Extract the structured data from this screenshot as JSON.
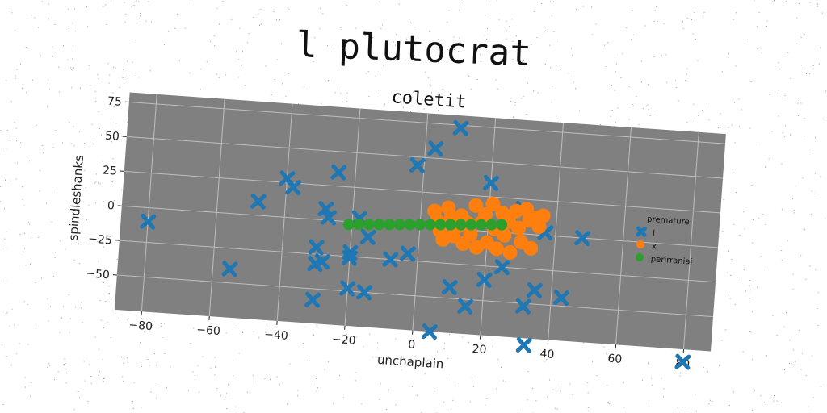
{
  "suptitle": "l plutocrat",
  "chart_data": {
    "type": "scatter",
    "title": "coletit",
    "xlabel": "unchaplain",
    "ylabel": "spindleshanks",
    "xlim": [
      -88,
      88
    ],
    "ylim": [
      -75,
      82
    ],
    "xticks": [
      -80,
      -60,
      -40,
      -20,
      0,
      20,
      40,
      60,
      80
    ],
    "yticks": [
      75,
      50,
      25,
      0,
      -25,
      -50
    ],
    "grid": true,
    "background": "#808080",
    "legend": {
      "title": "premature",
      "placement": "center-right"
    },
    "series": [
      {
        "name": "l",
        "marker": "X",
        "color": "#1f77b4",
        "points": [
          [
            -80,
            -10
          ],
          [
            -55,
            -40
          ],
          [
            -48,
            10
          ],
          [
            -40,
            28
          ],
          [
            -38,
            22
          ],
          [
            -30,
            -20
          ],
          [
            -30,
            -32
          ],
          [
            -28,
            -30
          ],
          [
            -28,
            8
          ],
          [
            -27,
            2
          ],
          [
            -30,
            -58
          ],
          [
            -25,
            35
          ],
          [
            -20,
            -22
          ],
          [
            -20,
            -26
          ],
          [
            -20,
            -48
          ],
          [
            -15,
            -50
          ],
          [
            -18,
            3
          ],
          [
            -15,
            -10
          ],
          [
            -8,
            -25
          ],
          [
            -3,
            -20
          ],
          [
            -2,
            44
          ],
          [
            3,
            57
          ],
          [
            5,
            -75
          ],
          [
            10,
            73
          ],
          [
            10,
            -42
          ],
          [
            15,
            -55
          ],
          [
            20,
            35
          ],
          [
            20,
            -35
          ],
          [
            25,
            -25
          ],
          [
            30,
            18
          ],
          [
            32,
            -52
          ],
          [
            33,
            -80
          ],
          [
            35,
            -40
          ],
          [
            37,
            2
          ],
          [
            43,
            -44
          ],
          [
            48,
            0
          ],
          [
            80,
            -84
          ]
        ]
      },
      {
        "name": "x",
        "marker": "o",
        "color": "#ff7f0e",
        "points": [
          [
            4,
            12
          ],
          [
            5,
            5
          ],
          [
            6,
            -2
          ],
          [
            7,
            -8
          ],
          [
            8,
            15
          ],
          [
            9,
            8
          ],
          [
            10,
            -5
          ],
          [
            11,
            2
          ],
          [
            12,
            10
          ],
          [
            13,
            -10
          ],
          [
            14,
            5
          ],
          [
            15,
            -3
          ],
          [
            16,
            18
          ],
          [
            17,
            -12
          ],
          [
            18,
            6
          ],
          [
            19,
            12
          ],
          [
            20,
            -8
          ],
          [
            21,
            20
          ],
          [
            22,
            2
          ],
          [
            23,
            -12
          ],
          [
            24,
            14
          ],
          [
            25,
            -2
          ],
          [
            26,
            8
          ],
          [
            27,
            -14
          ],
          [
            28,
            16
          ],
          [
            29,
            4
          ],
          [
            30,
            -6
          ],
          [
            31,
            18
          ],
          [
            32,
            10
          ],
          [
            33,
            -10
          ],
          [
            34,
            12
          ],
          [
            35,
            6
          ],
          [
            36,
            14
          ]
        ]
      },
      {
        "name": "perirraniai",
        "marker": "o",
        "color": "#2ca02c",
        "points": [
          [
            -21,
            -2
          ],
          [
            -18,
            -1.5
          ],
          [
            -15,
            -1
          ],
          [
            -12,
            -0.5
          ],
          [
            -9,
            0
          ],
          [
            -6,
            0.5
          ],
          [
            -3,
            1
          ],
          [
            0,
            1.5
          ],
          [
            3,
            2
          ],
          [
            6,
            2.5
          ],
          [
            9,
            3
          ],
          [
            12,
            3.5
          ],
          [
            15,
            4
          ],
          [
            18,
            4.5
          ],
          [
            21,
            5
          ],
          [
            24,
            5.5
          ]
        ]
      }
    ]
  }
}
